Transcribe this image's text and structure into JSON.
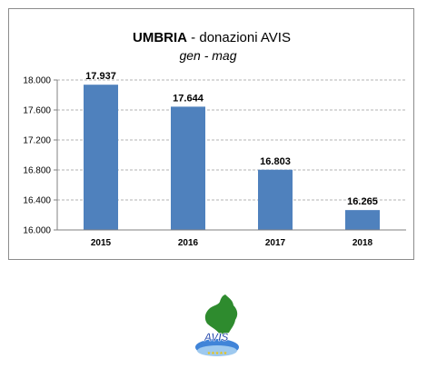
{
  "chart_data": {
    "type": "bar",
    "title_region": "UMBRIA",
    "title_rest": " - donazioni AVIS",
    "subtitle": "gen  - mag",
    "categories": [
      "2015",
      "2016",
      "2017",
      "2018"
    ],
    "values": [
      17937,
      17644,
      16803,
      16265
    ],
    "value_labels": [
      "17.937",
      "17.644",
      "16.803",
      "16.265"
    ],
    "y_ticks": [
      "16.000",
      "16.400",
      "16.800",
      "17.200",
      "17.600",
      "18.000"
    ],
    "ylim": [
      16000,
      18000
    ],
    "grid": true,
    "bar_color": "#4f81bd"
  },
  "logo": {
    "text": "AVIS",
    "region_color": "#2e8b2e",
    "wave_color": "#1f6fd1"
  }
}
